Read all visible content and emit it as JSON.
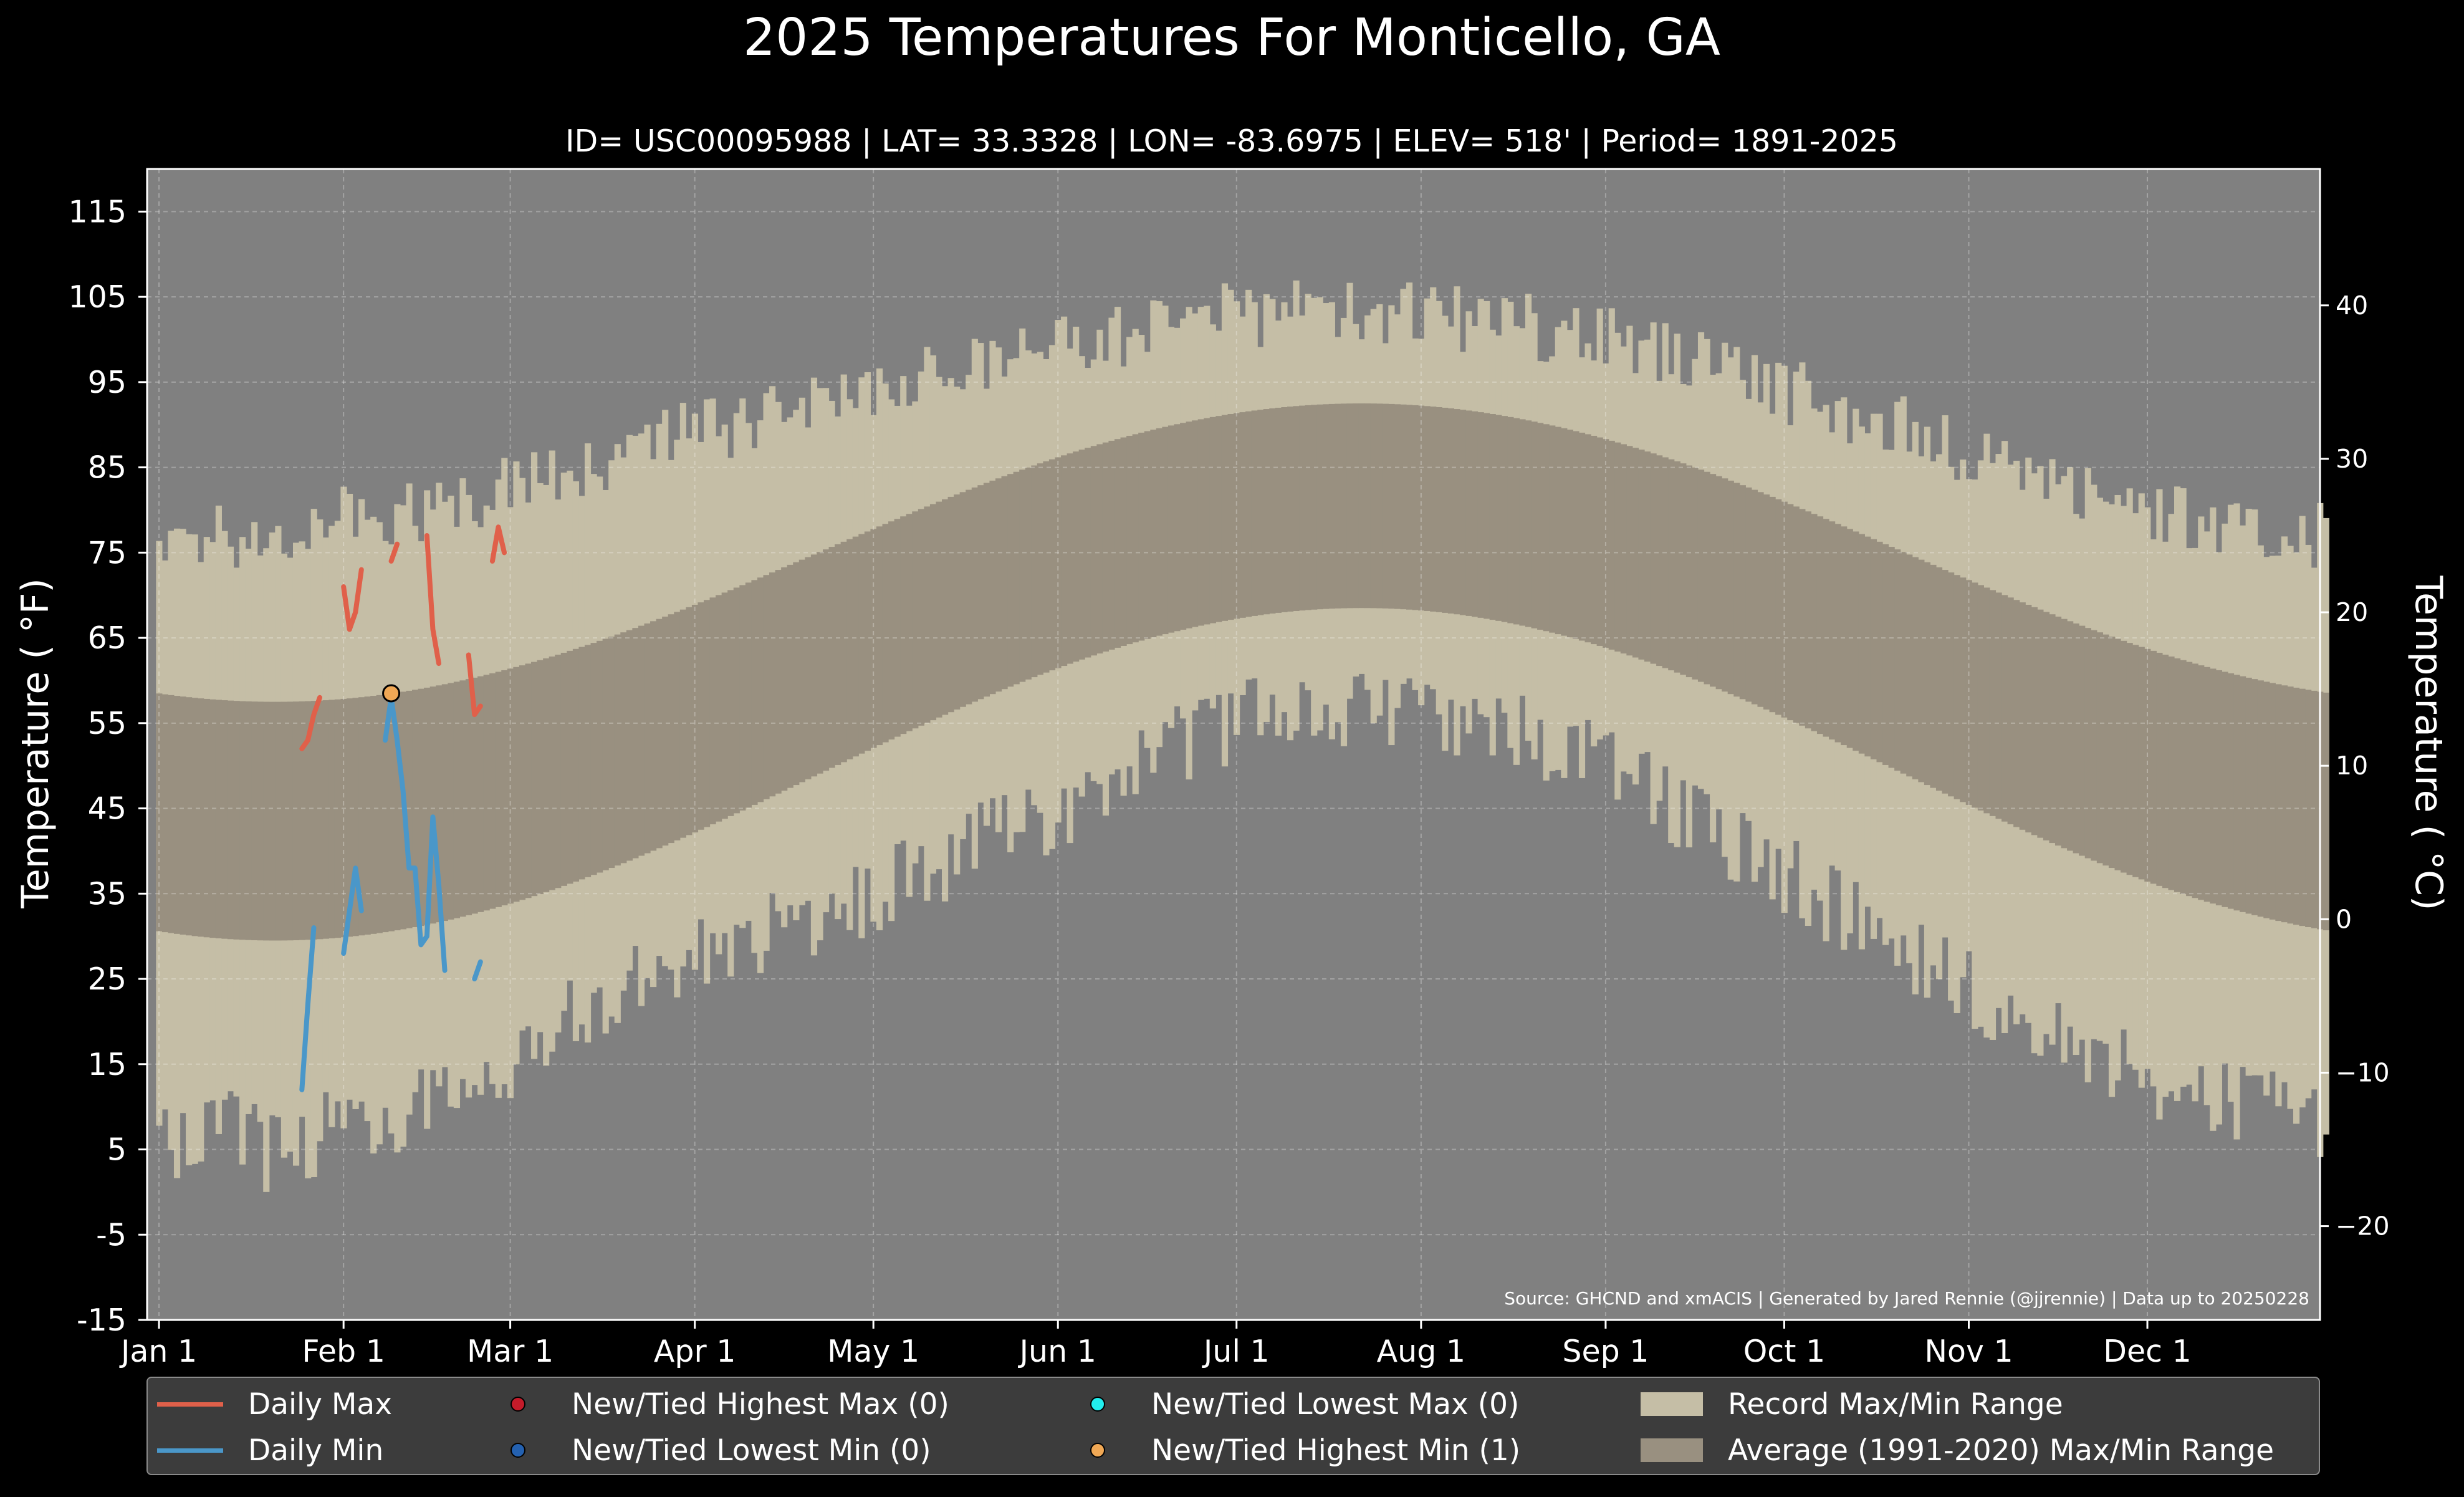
{
  "chart_data": {
    "type": "area",
    "title": "2025 Temperatures For Monticello, GA",
    "subtitle": "ID= USC00095988 | LAT= 33.3328 | LON= -83.6975 | ELEV= 518' | Period= 1891-2025",
    "ylabel": "Temperature ( °F)",
    "y2label": "Temperature ( °C)",
    "source": "Source: GHCND and xmACIS | Generated by Jared Rennie (@jjrennie) | Data up to 20250228",
    "ylim": [
      -15,
      120
    ],
    "xlim": [
      -2,
      363
    ],
    "yticks": [
      "115",
      "105",
      "95",
      "85",
      "75",
      "65",
      "55",
      "45",
      "35",
      "25",
      "15",
      "5",
      "-5",
      "-15"
    ],
    "y2ticks": [
      "40",
      "30",
      "20",
      "10",
      "0",
      "−10",
      "−20"
    ],
    "xticks": [
      {
        "label": "Jan 1",
        "day": 0
      },
      {
        "label": "Feb 1",
        "day": 31
      },
      {
        "label": "Mar 1",
        "day": 59
      },
      {
        "label": "Apr 1",
        "day": 90
      },
      {
        "label": "May 1",
        "day": 120
      },
      {
        "label": "Jun 1",
        "day": 151
      },
      {
        "label": "Jul 1",
        "day": 181
      },
      {
        "label": "Aug 1",
        "day": 212
      },
      {
        "label": "Sep 1",
        "day": 243
      },
      {
        "label": "Oct 1",
        "day": 273
      },
      {
        "label": "Nov 1",
        "day": 304
      },
      {
        "label": "Dec 1",
        "day": 334
      }
    ],
    "grid": true,
    "legend_position": "bottom",
    "colors": {
      "background": "#808080",
      "record": "#c5bea6",
      "normal": "#999080",
      "daily_max": "#e0604a",
      "daily_min": "#4a97c9",
      "new_high_max": "#c41b2a",
      "new_low_min": "#2461b0",
      "new_low_max": "#22eeee",
      "new_high_min": "#f0a855"
    },
    "record_max_anchors": [
      [
        0,
        76
      ],
      [
        15,
        77
      ],
      [
        31,
        79
      ],
      [
        45,
        80
      ],
      [
        59,
        83
      ],
      [
        74,
        86
      ],
      [
        90,
        89
      ],
      [
        105,
        91
      ],
      [
        120,
        94
      ],
      [
        135,
        97
      ],
      [
        151,
        99
      ],
      [
        166,
        101
      ],
      [
        181,
        103
      ],
      [
        196,
        103
      ],
      [
        212,
        103
      ],
      [
        227,
        102
      ],
      [
        243,
        100
      ],
      [
        258,
        98
      ],
      [
        273,
        94
      ],
      [
        288,
        91
      ],
      [
        304,
        87
      ],
      [
        319,
        84
      ],
      [
        334,
        80
      ],
      [
        349,
        78
      ],
      [
        364,
        77
      ]
    ],
    "record_min_anchors": [
      [
        0,
        5
      ],
      [
        10,
        8
      ],
      [
        20,
        4
      ],
      [
        31,
        8
      ],
      [
        45,
        10
      ],
      [
        59,
        16
      ],
      [
        74,
        22
      ],
      [
        90,
        28
      ],
      [
        105,
        31
      ],
      [
        120,
        35
      ],
      [
        135,
        40
      ],
      [
        151,
        44
      ],
      [
        166,
        51
      ],
      [
        181,
        55
      ],
      [
        196,
        57
      ],
      [
        212,
        56
      ],
      [
        227,
        54
      ],
      [
        243,
        50
      ],
      [
        258,
        44
      ],
      [
        273,
        37
      ],
      [
        288,
        31
      ],
      [
        304,
        24
      ],
      [
        319,
        18
      ],
      [
        334,
        14
      ],
      [
        349,
        10
      ],
      [
        364,
        9
      ]
    ],
    "normal_max": {
      "mean": 75,
      "amplitude": 17.5,
      "peak_day": 202
    },
    "normal_min": {
      "mean": 49,
      "amplitude": 19.5,
      "peak_day": 202
    },
    "series": [
      {
        "name": "Daily Max",
        "segments": [
          [
            [
              24,
              52
            ],
            [
              25,
              53
            ],
            [
              26,
              56
            ],
            [
              27,
              58
            ]
          ],
          [
            [
              31,
              71
            ],
            [
              32,
              66
            ],
            [
              33,
              68
            ],
            [
              34,
              73
            ]
          ],
          [
            [
              39,
              74
            ],
            [
              40,
              76
            ]
          ],
          [
            [
              45,
              77
            ],
            [
              46,
              66
            ],
            [
              47,
              62
            ]
          ],
          [
            [
              52,
              63
            ],
            [
              53,
              56
            ],
            [
              54,
              57
            ]
          ],
          [
            [
              56,
              74
            ],
            [
              57,
              78
            ],
            [
              58,
              75
            ]
          ]
        ]
      },
      {
        "name": "Daily Min",
        "segments": [
          [
            [
              24,
              12
            ],
            [
              25,
              22
            ],
            [
              26,
              31
            ]
          ],
          [
            [
              31,
              28
            ],
            [
              32,
              33
            ],
            [
              33,
              38
            ],
            [
              34,
              33
            ]
          ],
          [
            [
              38,
              53
            ],
            [
              39,
              58
            ],
            [
              40,
              53
            ],
            [
              41,
              47
            ],
            [
              42,
              38
            ],
            [
              43,
              38
            ],
            [
              44,
              29
            ],
            [
              45,
              30
            ],
            [
              46,
              44
            ],
            [
              47,
              36
            ],
            [
              48,
              26
            ]
          ],
          [
            [
              53,
              25
            ],
            [
              54,
              27
            ]
          ]
        ]
      }
    ],
    "records": [
      {
        "name": "New/Tied Highest Min (1)",
        "day": 39,
        "value": 58.5
      }
    ],
    "legend": [
      {
        "label": "Daily Max",
        "kind": "line",
        "color": "#e0604a"
      },
      {
        "label": "Daily Min",
        "kind": "line",
        "color": "#4a97c9"
      },
      {
        "label": "New/Tied Highest Max (0)",
        "kind": "dot",
        "color": "#c41b2a"
      },
      {
        "label": "New/Tied Lowest Min (0)",
        "kind": "dot",
        "color": "#2461b0"
      },
      {
        "label": "New/Tied Lowest Max (0)",
        "kind": "dot",
        "color": "#22eeee"
      },
      {
        "label": "New/Tied Highest Min (1)",
        "kind": "dot",
        "color": "#f0a855"
      },
      {
        "label": "Record Max/Min Range",
        "kind": "rect",
        "color": "#c5bea6"
      },
      {
        "label": "Average (1991-2020) Max/Min Range",
        "kind": "rect",
        "color": "#999080"
      }
    ]
  }
}
